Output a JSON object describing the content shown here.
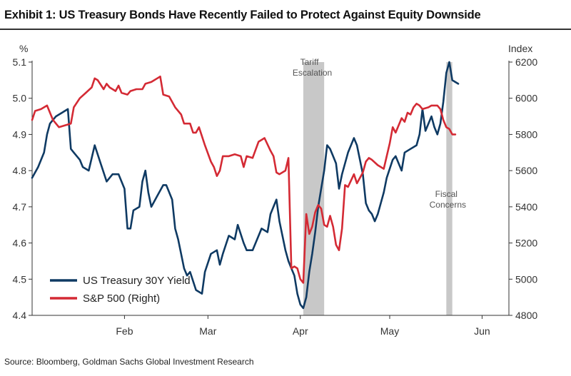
{
  "header": {
    "title": "Exhibit 1: US Treasury Bonds Have Recently Failed to Protect Against Equity Downside"
  },
  "footer": {
    "source": "Source: Bloomberg, Goldman Sachs Global Investment Research"
  },
  "colors": {
    "yield": "#0f3a63",
    "spx": "#d42a34",
    "band": "#c8c8c8",
    "axis": "#333333"
  },
  "chart_data": {
    "type": "line",
    "x_axis": {
      "ticks": [
        "Feb",
        "Mar",
        "Apr",
        "May",
        "Jun"
      ],
      "tick_days": [
        31,
        59,
        90,
        120,
        151
      ],
      "range_days": [
        0,
        160
      ],
      "unit": "days in year 2025 (day 0 = Jan 1)"
    },
    "y_left": {
      "label": "%",
      "range": [
        4.4,
        5.1
      ],
      "ticks": [
        "5.1",
        "5.0",
        "4.9",
        "4.8",
        "4.7",
        "4.6",
        "4.5",
        "4.4"
      ],
      "tick_values": [
        5.1,
        5.0,
        4.9,
        4.8,
        4.7,
        4.6,
        4.5,
        4.4
      ]
    },
    "y_right": {
      "label": "Index",
      "range": [
        4800,
        6200
      ],
      "ticks": [
        "6200",
        "6000",
        "5800",
        "5600",
        "5400",
        "5200",
        "5000",
        "4800"
      ],
      "tick_values": [
        6200,
        6000,
        5800,
        5600,
        5400,
        5200,
        5000,
        4800
      ]
    },
    "shaded_periods": [
      {
        "label": "Tariff Escalation",
        "start": 91,
        "end": 98
      },
      {
        "label": "Fiscal Concerns",
        "start": 139,
        "end": 141
      }
    ],
    "legend": {
      "position": "bottom-left"
    },
    "grid": false,
    "series": [
      {
        "name": "US Treasury 30Y Yield",
        "axis": "left",
        "points": [
          [
            0,
            4.78
          ],
          [
            2,
            4.81
          ],
          [
            4,
            4.85
          ],
          [
            5,
            4.9
          ],
          [
            6,
            4.93
          ],
          [
            8,
            4.95
          ],
          [
            10,
            4.96
          ],
          [
            12,
            4.97
          ],
          [
            13,
            4.86
          ],
          [
            14,
            4.85
          ],
          [
            16,
            4.83
          ],
          [
            17,
            4.81
          ],
          [
            19,
            4.8
          ],
          [
            21,
            4.87
          ],
          [
            23,
            4.82
          ],
          [
            25,
            4.77
          ],
          [
            27,
            4.79
          ],
          [
            29,
            4.79
          ],
          [
            31,
            4.75
          ],
          [
            32,
            4.64
          ],
          [
            33,
            4.64
          ],
          [
            34,
            4.69
          ],
          [
            36,
            4.7
          ],
          [
            37,
            4.77
          ],
          [
            38,
            4.8
          ],
          [
            39,
            4.74
          ],
          [
            40,
            4.7
          ],
          [
            42,
            4.73
          ],
          [
            44,
            4.76
          ],
          [
            45,
            4.76
          ],
          [
            47,
            4.72
          ],
          [
            48,
            4.64
          ],
          [
            49,
            4.61
          ],
          [
            51,
            4.53
          ],
          [
            52,
            4.51
          ],
          [
            53,
            4.52
          ],
          [
            55,
            4.47
          ],
          [
            57,
            4.46
          ],
          [
            58,
            4.52
          ],
          [
            60,
            4.57
          ],
          [
            62,
            4.58
          ],
          [
            63,
            4.54
          ],
          [
            64,
            4.57
          ],
          [
            66,
            4.62
          ],
          [
            68,
            4.61
          ],
          [
            69,
            4.65
          ],
          [
            71,
            4.6
          ],
          [
            72,
            4.58
          ],
          [
            74,
            4.58
          ],
          [
            75,
            4.6
          ],
          [
            77,
            4.64
          ],
          [
            79,
            4.63
          ],
          [
            80,
            4.68
          ],
          [
            82,
            4.72
          ],
          [
            83,
            4.66
          ],
          [
            84,
            4.62
          ],
          [
            85,
            4.58
          ],
          [
            86,
            4.55
          ],
          [
            87,
            4.53
          ],
          [
            88,
            4.51
          ],
          [
            89,
            4.46
          ],
          [
            90,
            4.43
          ],
          [
            91,
            4.42
          ],
          [
            92,
            4.45
          ],
          [
            93,
            4.52
          ],
          [
            94,
            4.57
          ],
          [
            95,
            4.63
          ],
          [
            96,
            4.7
          ],
          [
            97,
            4.75
          ],
          [
            98,
            4.8
          ],
          [
            99,
            4.87
          ],
          [
            100,
            4.86
          ],
          [
            101,
            4.84
          ],
          [
            102,
            4.82
          ],
          [
            103,
            4.75
          ],
          [
            104,
            4.79
          ],
          [
            106,
            4.85
          ],
          [
            108,
            4.89
          ],
          [
            109,
            4.87
          ],
          [
            111,
            4.79
          ],
          [
            112,
            4.71
          ],
          [
            113,
            4.69
          ],
          [
            114,
            4.68
          ],
          [
            115,
            4.66
          ],
          [
            116,
            4.68
          ],
          [
            117,
            4.71
          ],
          [
            118,
            4.74
          ],
          [
            119,
            4.78
          ],
          [
            121,
            4.83
          ],
          [
            122,
            4.84
          ],
          [
            124,
            4.8
          ],
          [
            125,
            4.85
          ],
          [
            127,
            4.86
          ],
          [
            129,
            4.87
          ],
          [
            130,
            4.9
          ],
          [
            131,
            4.97
          ],
          [
            132,
            4.91
          ],
          [
            134,
            4.95
          ],
          [
            135,
            4.92
          ],
          [
            136,
            4.9
          ],
          [
            137,
            4.93
          ],
          [
            138,
            4.99
          ],
          [
            139,
            5.07
          ],
          [
            140,
            5.1
          ],
          [
            141,
            5.05
          ],
          [
            143,
            5.04
          ]
        ]
      },
      {
        "name": "S&P 500 (Right)",
        "axis": "right",
        "points": [
          [
            0,
            5880
          ],
          [
            1,
            5930
          ],
          [
            3,
            5940
          ],
          [
            5,
            5960
          ],
          [
            7,
            5880
          ],
          [
            9,
            5840
          ],
          [
            11,
            5850
          ],
          [
            13,
            5860
          ],
          [
            14,
            5950
          ],
          [
            16,
            6000
          ],
          [
            18,
            6030
          ],
          [
            20,
            6060
          ],
          [
            21,
            6110
          ],
          [
            22,
            6100
          ],
          [
            24,
            6050
          ],
          [
            25,
            6080
          ],
          [
            26,
            6060
          ],
          [
            28,
            6040
          ],
          [
            29,
            6070
          ],
          [
            30,
            6030
          ],
          [
            32,
            6020
          ],
          [
            33,
            6040
          ],
          [
            35,
            6050
          ],
          [
            37,
            6050
          ],
          [
            38,
            6080
          ],
          [
            40,
            6090
          ],
          [
            42,
            6110
          ],
          [
            43,
            6120
          ],
          [
            44,
            6020
          ],
          [
            46,
            6010
          ],
          [
            48,
            5950
          ],
          [
            50,
            5910
          ],
          [
            51,
            5860
          ],
          [
            53,
            5860
          ],
          [
            54,
            5810
          ],
          [
            55,
            5810
          ],
          [
            56,
            5840
          ],
          [
            58,
            5740
          ],
          [
            60,
            5650
          ],
          [
            61,
            5620
          ],
          [
            62,
            5570
          ],
          [
            63,
            5600
          ],
          [
            64,
            5680
          ],
          [
            66,
            5680
          ],
          [
            68,
            5690
          ],
          [
            70,
            5680
          ],
          [
            71,
            5620
          ],
          [
            72,
            5680
          ],
          [
            74,
            5670
          ],
          [
            76,
            5760
          ],
          [
            78,
            5780
          ],
          [
            80,
            5710
          ],
          [
            81,
            5680
          ],
          [
            82,
            5590
          ],
          [
            83,
            5580
          ],
          [
            85,
            5600
          ],
          [
            86,
            5670
          ],
          [
            87,
            5060
          ],
          [
            88,
            5070
          ],
          [
            89,
            5060
          ],
          [
            90,
            5000
          ],
          [
            91,
            4980
          ],
          [
            92,
            5360
          ],
          [
            93,
            5250
          ],
          [
            94,
            5290
          ],
          [
            95,
            5370
          ],
          [
            96,
            5410
          ],
          [
            97,
            5390
          ],
          [
            98,
            5300
          ],
          [
            99,
            5290
          ],
          [
            100,
            5350
          ],
          [
            101,
            5290
          ],
          [
            102,
            5190
          ],
          [
            103,
            5160
          ],
          [
            104,
            5280
          ],
          [
            105,
            5520
          ],
          [
            106,
            5510
          ],
          [
            108,
            5580
          ],
          [
            109,
            5530
          ],
          [
            110,
            5560
          ],
          [
            111,
            5590
          ],
          [
            112,
            5650
          ],
          [
            113,
            5670
          ],
          [
            114,
            5660
          ],
          [
            116,
            5630
          ],
          [
            118,
            5610
          ],
          [
            119,
            5680
          ],
          [
            120,
            5750
          ],
          [
            121,
            5840
          ],
          [
            122,
            5810
          ],
          [
            124,
            5890
          ],
          [
            125,
            5870
          ],
          [
            126,
            5920
          ],
          [
            127,
            5910
          ],
          [
            128,
            5950
          ],
          [
            129,
            5970
          ],
          [
            130,
            5960
          ],
          [
            131,
            5940
          ],
          [
            133,
            5950
          ],
          [
            134,
            5960
          ],
          [
            136,
            5960
          ],
          [
            137,
            5940
          ],
          [
            138,
            5880
          ],
          [
            139,
            5840
          ],
          [
            140,
            5830
          ],
          [
            141,
            5800
          ],
          [
            142,
            5800
          ]
        ]
      }
    ]
  }
}
